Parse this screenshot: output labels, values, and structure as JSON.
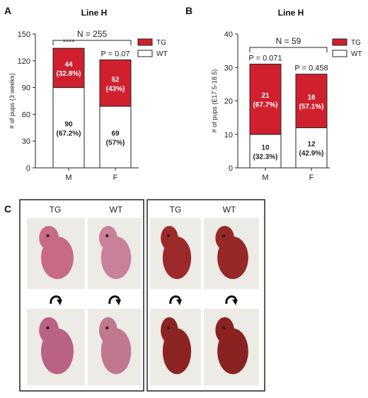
{
  "panel_letters": {
    "a": "A",
    "b": "B",
    "c": "C"
  },
  "colors": {
    "tg": "#d0202e",
    "wt": "#ffffff",
    "outline": "#222222"
  },
  "chart_data": [
    {
      "type": "bar",
      "stacked": true,
      "title": "Line H",
      "annotation": "N = 255",
      "ylabel": "# of pups (3 weeks)",
      "ylim": [
        0,
        150
      ],
      "yticks": [
        "0",
        "30",
        "60",
        "90",
        "120",
        "150"
      ],
      "categories": [
        "M",
        "F"
      ],
      "series": [
        {
          "name": "WT",
          "values": [
            90,
            69
          ],
          "labels": [
            "90\n(67.2%)",
            "69\n(57%)"
          ]
        },
        {
          "name": "TG",
          "values": [
            44,
            52
          ],
          "labels": [
            "44\n(32.8%)",
            "52\n(43%)"
          ]
        }
      ],
      "bar_annotations": [
        "****",
        "P = 0.07"
      ],
      "legend": [
        "TG",
        "WT"
      ],
      "legend_position": "top-right"
    },
    {
      "type": "bar",
      "stacked": true,
      "title": "Line H",
      "annotation": "N = 59",
      "ylabel": "# of pups (E17.5-18.5)",
      "ylim": [
        0,
        40
      ],
      "yticks": [
        "0",
        "10",
        "20",
        "30",
        "40"
      ],
      "categories": [
        "M",
        "F"
      ],
      "series": [
        {
          "name": "WT",
          "values": [
            10,
            12
          ],
          "labels": [
            "10\n(32.3%)",
            "12\n(42.9%)"
          ]
        },
        {
          "name": "TG",
          "values": [
            21,
            16
          ],
          "labels": [
            "21\n(67.7%)",
            "16\n(57.1%)"
          ]
        }
      ],
      "bar_annotations": [
        "P = 0.071",
        "P = 0.458"
      ],
      "legend": [
        "TG",
        "WT"
      ],
      "legend_position": "top-right"
    }
  ],
  "photos": {
    "left_group": {
      "col_labels": [
        "TG",
        "WT"
      ]
    },
    "right_group": {
      "col_labels": [
        "TG",
        "WT"
      ]
    }
  }
}
